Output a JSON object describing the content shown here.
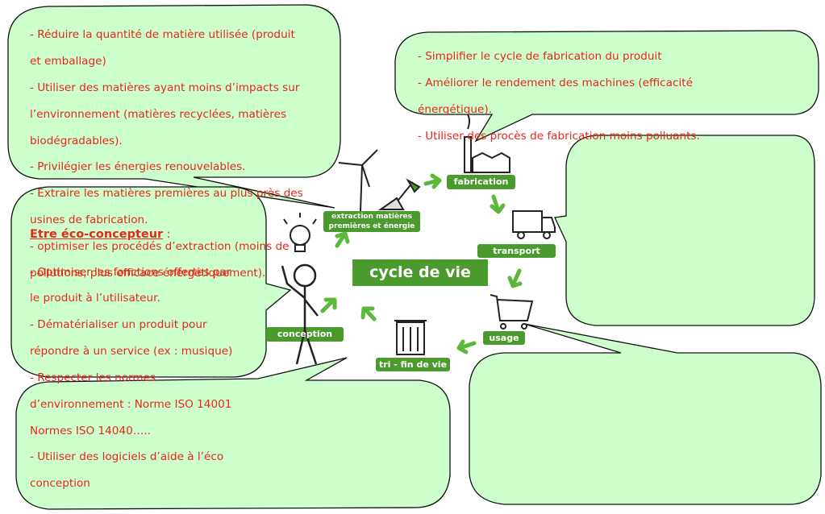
{
  "bubbles": {
    "extraction_notes": [
      "- Réduire la quantité de matière utilisée (produit",
      "et emballage)",
      "- Utiliser des matières ayant moins d’impacts sur",
      "l’environnement (matières recyclées, matières",
      "biodégradables).",
      "- Privilégier les  énergies renouvelables.",
      "- Extraire les matières premières au plus près des",
      "usines de fabrication.",
      "- optimiser les procédés d’extraction (moins de",
      "pollutions, plus efficace énergétiquement)."
    ],
    "fabrication_notes": [
      "- Simplifier le cycle de fabrication du produit",
      "- Améliorer le rendement des  machines (efficacité",
      "énergétique).",
      "- Utiliser des procès de fabrication moins polluants."
    ],
    "conception_title": "Etre éco-concepteur",
    "conception_colon": " :",
    "conception_notes": [
      "- Optimiser les fonctions offertes par",
      "le produit à l’utilisateur.",
      "- Dématérialiser un produit pour",
      "répondre à un service (ex : musique)",
      "- Respecter les normes",
      "d’environnement : Norme ISO 14001",
      "Normes ISO 14040…..",
      "- Utiliser des logiciels d’aide à l’éco",
      "conception"
    ]
  },
  "cycle": {
    "center_label": "cycle de vie",
    "stages": {
      "extraction": [
        "extraction matières",
        "premières et énergie"
      ],
      "fabrication": "fabrication",
      "transport": "transport",
      "usage": "usage",
      "fin_de_vie": "tri - fin de vie",
      "conception": "conception"
    }
  },
  "colors": {
    "bubble_fill": "#ccffcc",
    "bubble_stroke": "#111111",
    "text_red": "#e8261b",
    "stage_green": "#4a9a2e",
    "arrow_green": "#5cb83a"
  }
}
